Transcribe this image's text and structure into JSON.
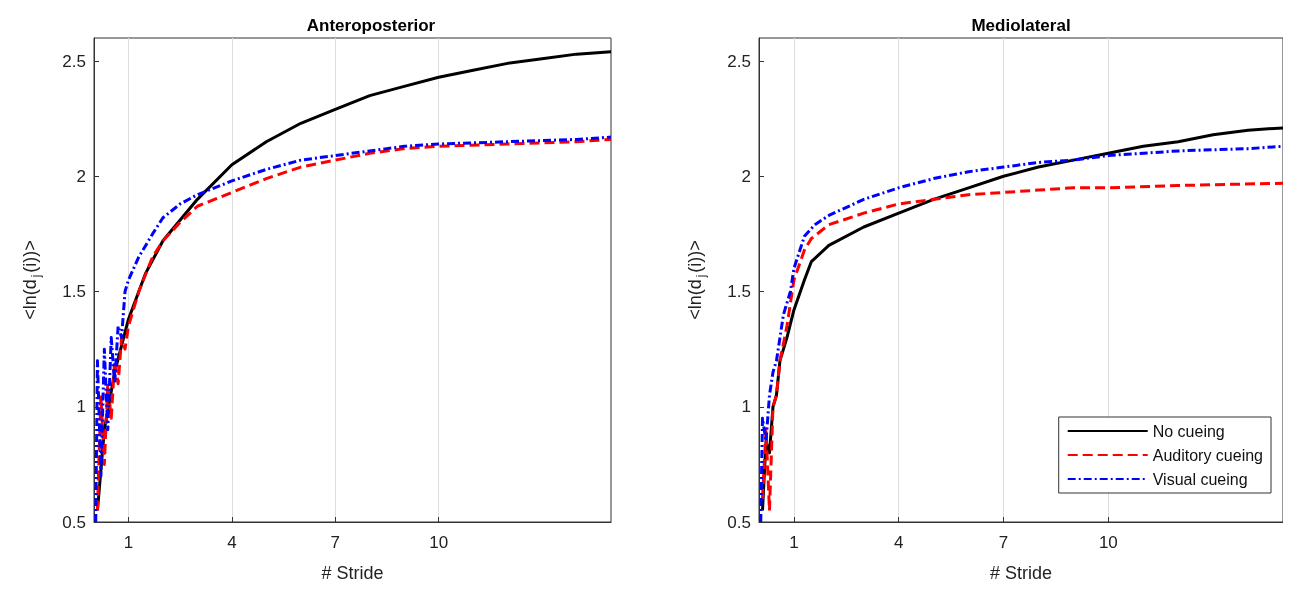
{
  "chart_data": [
    {
      "type": "line",
      "title": "Anteroposterior",
      "xlabel": "# Stride",
      "ylabel": "<ln(d$_{j}$(i))>",
      "xlim": [
        0,
        15
      ],
      "xticks": [
        1,
        4,
        7,
        10
      ],
      "ylim": [
        0.5,
        2.6
      ],
      "yticks": [
        0.5,
        1,
        1.5,
        2,
        2.5
      ],
      "grid": "x",
      "legend": false,
      "marker": "none",
      "series": [
        {
          "color": "#000000",
          "line_style": "solid",
          "x": [
            0.1,
            0.3,
            0.6,
            1,
            1.5,
            2,
            3,
            4,
            5,
            6,
            7,
            8,
            9,
            10,
            11,
            12,
            13,
            14,
            15
          ],
          "values": [
            0.55,
            0.9,
            1.15,
            1.38,
            1.58,
            1.72,
            1.9,
            2.05,
            2.15,
            2.23,
            2.29,
            2.35,
            2.39,
            2.43,
            2.46,
            2.49,
            2.51,
            2.53,
            2.54
          ]
        },
        {
          "color": "#ff0000",
          "line_style": "dashed",
          "x": [
            0.1,
            0.2,
            0.3,
            0.4,
            0.5,
            0.6,
            0.7,
            0.8,
            0.9,
            1,
            1.3,
            1.7,
            2,
            2.5,
            3,
            4,
            5,
            6,
            7,
            8,
            9,
            10,
            12,
            14,
            15
          ],
          "values": [
            0.55,
            1.05,
            0.75,
            1.1,
            0.95,
            1.2,
            1.1,
            1.3,
            1.25,
            1.35,
            1.5,
            1.65,
            1.72,
            1.8,
            1.87,
            1.93,
            1.99,
            2.04,
            2.07,
            2.1,
            2.12,
            2.13,
            2.14,
            2.15,
            2.16
          ]
        },
        {
          "color": "#0000ff",
          "line_style": "dashdot",
          "x": [
            0.05,
            0.1,
            0.2,
            0.3,
            0.4,
            0.5,
            0.6,
            0.7,
            0.8,
            0.9,
            1,
            1.3,
            1.7,
            2,
            2.5,
            3,
            4,
            5,
            6,
            7,
            8,
            9,
            10,
            12,
            14,
            15
          ],
          "values": [
            0.5,
            1.2,
            0.7,
            1.25,
            0.9,
            1.3,
            1.1,
            1.35,
            1.3,
            1.5,
            1.55,
            1.65,
            1.75,
            1.82,
            1.88,
            1.92,
            1.98,
            2.03,
            2.07,
            2.09,
            2.11,
            2.13,
            2.14,
            2.15,
            2.16,
            2.17
          ]
        }
      ]
    },
    {
      "type": "line",
      "title": "Mediolateral",
      "xlabel": "# Stride",
      "ylabel": "<ln(d$_{j}$(i))>",
      "xlim": [
        0,
        15
      ],
      "xticks": [
        1,
        4,
        7,
        10
      ],
      "ylim": [
        0.5,
        2.6
      ],
      "yticks": [
        0.5,
        1,
        1.5,
        2,
        2.5
      ],
      "grid": "x",
      "legend": "bottom right",
      "marker": "none",
      "series": [
        {
          "name": "No cueing",
          "color": "#000000",
          "line_style": "solid",
          "x": [
            0.1,
            0.2,
            0.3,
            0.4,
            0.5,
            0.6,
            0.8,
            1,
            1.3,
            1.5,
            2,
            3,
            4,
            5,
            6,
            7,
            8,
            9,
            10,
            11,
            12,
            13,
            14,
            15
          ],
          "values": [
            0.55,
            0.85,
            0.8,
            1.0,
            1.05,
            1.2,
            1.3,
            1.42,
            1.55,
            1.63,
            1.7,
            1.78,
            1.84,
            1.9,
            1.95,
            2.0,
            2.04,
            2.07,
            2.1,
            2.13,
            2.15,
            2.18,
            2.2,
            2.21
          ]
        },
        {
          "name": "Auditory cueing",
          "color": "#ff0000",
          "line_style": "dashed",
          "x": [
            0.1,
            0.2,
            0.3,
            0.4,
            0.5,
            0.6,
            0.8,
            1,
            1.3,
            1.5,
            2,
            3,
            4,
            5,
            6,
            7,
            8,
            9,
            10,
            12,
            15
          ],
          "values": [
            0.6,
            0.9,
            0.55,
            1.0,
            1.05,
            1.2,
            1.35,
            1.55,
            1.68,
            1.73,
            1.79,
            1.84,
            1.88,
            1.9,
            1.92,
            1.93,
            1.94,
            1.95,
            1.95,
            1.96,
            1.97
          ]
        },
        {
          "name": "Visual cueing",
          "color": "#0000ff",
          "line_style": "dashdot",
          "x": [
            0.05,
            0.1,
            0.2,
            0.3,
            0.4,
            0.5,
            0.6,
            0.7,
            0.9,
            1,
            1.3,
            1.6,
            2,
            3,
            4,
            5,
            6,
            7,
            8,
            9,
            10,
            12,
            14,
            15
          ],
          "values": [
            0.5,
            0.95,
            0.85,
            1.05,
            1.15,
            1.2,
            1.3,
            1.4,
            1.5,
            1.6,
            1.74,
            1.79,
            1.83,
            1.9,
            1.95,
            1.99,
            2.02,
            2.04,
            2.06,
            2.07,
            2.09,
            2.11,
            2.12,
            2.13
          ]
        }
      ]
    }
  ]
}
